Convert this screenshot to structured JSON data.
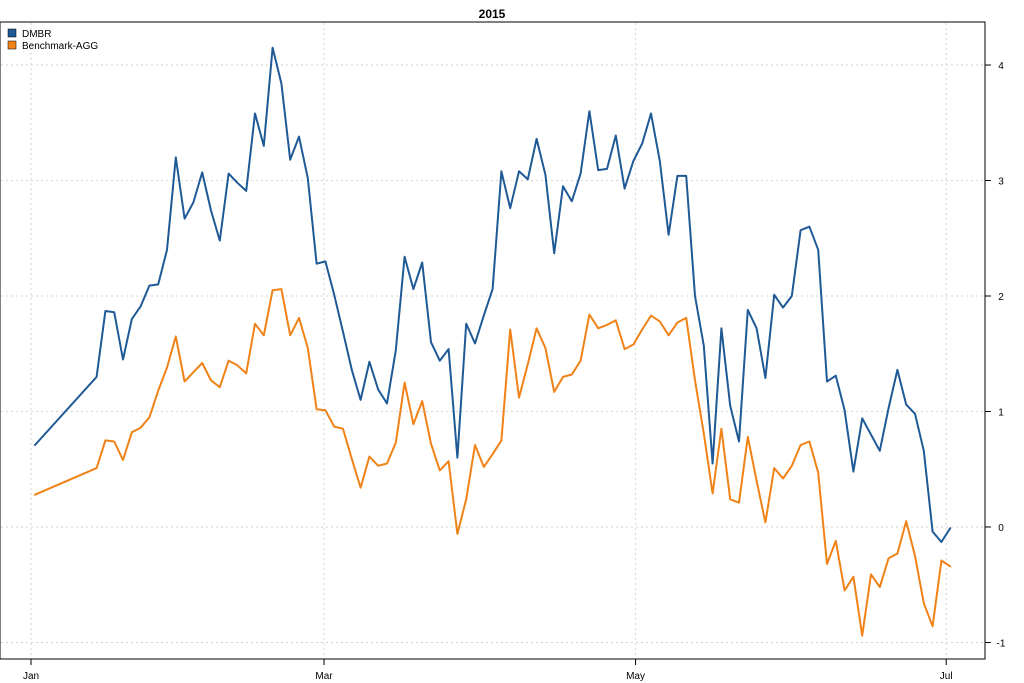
{
  "chart_data": {
    "type": "line",
    "title": "2015",
    "xlabel": "",
    "ylabel": "",
    "x_tick_labels": [
      "Jan",
      "Mar",
      "May",
      "Jul"
    ],
    "y_ticks": [
      -1,
      0,
      1,
      2,
      3,
      4
    ],
    "y_tick_labels": [
      "-1",
      "0",
      "1",
      "2",
      "3",
      "4"
    ],
    "y_axis_side": "right",
    "ylim": [
      -1.25,
      4.35
    ],
    "grid": true,
    "legend_position": "top-left",
    "series": [
      {
        "name": "DMBR",
        "color": "#1f5a96",
        "values": [
          [
            1,
            0.71
          ],
          [
            8,
            1.3
          ],
          [
            9,
            1.87
          ],
          [
            10,
            1.86
          ],
          [
            11,
            1.45
          ],
          [
            12,
            1.8
          ],
          [
            13,
            1.91
          ],
          [
            14,
            2.09
          ],
          [
            15,
            2.1
          ],
          [
            16,
            2.4
          ],
          [
            17,
            3.2
          ],
          [
            18,
            2.67
          ],
          [
            19,
            2.81
          ],
          [
            20,
            3.07
          ],
          [
            21,
            2.74
          ],
          [
            22,
            2.48
          ],
          [
            23,
            3.06
          ],
          [
            24,
            2.98
          ],
          [
            25,
            2.91
          ],
          [
            26,
            3.58
          ],
          [
            27,
            3.3
          ],
          [
            28,
            4.15
          ],
          [
            29,
            3.84
          ],
          [
            30,
            3.18
          ],
          [
            31,
            3.38
          ],
          [
            32,
            3.02
          ],
          [
            33,
            2.28
          ],
          [
            34,
            2.3
          ],
          [
            35,
            2.01
          ],
          [
            36,
            1.69
          ],
          [
            37,
            1.36
          ],
          [
            38,
            1.1
          ],
          [
            39,
            1.43
          ],
          [
            40,
            1.19
          ],
          [
            41,
            1.07
          ],
          [
            42,
            1.53
          ],
          [
            43,
            2.34
          ],
          [
            44,
            2.06
          ],
          [
            45,
            2.29
          ],
          [
            46,
            1.6
          ],
          [
            47,
            1.44
          ],
          [
            48,
            1.54
          ],
          [
            49,
            0.6
          ],
          [
            50,
            1.76
          ],
          [
            51,
            1.59
          ],
          [
            52,
            1.83
          ],
          [
            53,
            2.06
          ],
          [
            54,
            3.08
          ],
          [
            55,
            2.76
          ],
          [
            56,
            3.08
          ],
          [
            57,
            3.01
          ],
          [
            58,
            3.36
          ],
          [
            59,
            3.05
          ],
          [
            60,
            2.37
          ],
          [
            61,
            2.95
          ],
          [
            62,
            2.82
          ],
          [
            63,
            3.06
          ],
          [
            64,
            3.6
          ],
          [
            65,
            3.09
          ],
          [
            66,
            3.1
          ],
          [
            67,
            3.39
          ],
          [
            68,
            2.93
          ],
          [
            69,
            3.17
          ],
          [
            70,
            3.32
          ],
          [
            71,
            3.58
          ],
          [
            72,
            3.17
          ],
          [
            73,
            2.53
          ],
          [
            74,
            3.04
          ],
          [
            75,
            3.04
          ],
          [
            76,
            2.0
          ],
          [
            77,
            1.57
          ],
          [
            78,
            0.55
          ],
          [
            79,
            1.72
          ],
          [
            80,
            1.05
          ],
          [
            81,
            0.74
          ],
          [
            82,
            1.88
          ],
          [
            83,
            1.72
          ],
          [
            84,
            1.29
          ],
          [
            85,
            2.01
          ],
          [
            86,
            1.9
          ],
          [
            87,
            2.0
          ],
          [
            88,
            2.57
          ],
          [
            89,
            2.6
          ],
          [
            90,
            2.4
          ],
          [
            91,
            1.26
          ],
          [
            92,
            1.31
          ],
          [
            93,
            1.01
          ],
          [
            94,
            0.48
          ],
          [
            95,
            0.94
          ],
          [
            96,
            0.8
          ],
          [
            97,
            0.66
          ],
          [
            98,
            1.03
          ],
          [
            99,
            1.36
          ],
          [
            100,
            1.06
          ],
          [
            101,
            0.98
          ],
          [
            102,
            0.66
          ],
          [
            103,
            -0.04
          ],
          [
            104,
            -0.13
          ],
          [
            105,
            -0.01
          ]
        ]
      },
      {
        "name": "Benchmark-AGG",
        "color": "#f08218",
        "values": [
          [
            1,
            0.28
          ],
          [
            8,
            0.51
          ],
          [
            9,
            0.75
          ],
          [
            10,
            0.74
          ],
          [
            11,
            0.58
          ],
          [
            12,
            0.82
          ],
          [
            13,
            0.86
          ],
          [
            14,
            0.95
          ],
          [
            15,
            1.18
          ],
          [
            16,
            1.38
          ],
          [
            17,
            1.65
          ],
          [
            18,
            1.26
          ],
          [
            19,
            1.34
          ],
          [
            20,
            1.42
          ],
          [
            21,
            1.27
          ],
          [
            22,
            1.21
          ],
          [
            23,
            1.44
          ],
          [
            24,
            1.4
          ],
          [
            25,
            1.33
          ],
          [
            26,
            1.76
          ],
          [
            27,
            1.66
          ],
          [
            28,
            2.05
          ],
          [
            29,
            2.06
          ],
          [
            30,
            1.66
          ],
          [
            31,
            1.81
          ],
          [
            32,
            1.55
          ],
          [
            33,
            1.02
          ],
          [
            34,
            1.01
          ],
          [
            35,
            0.87
          ],
          [
            36,
            0.85
          ],
          [
            37,
            0.59
          ],
          [
            38,
            0.34
          ],
          [
            39,
            0.61
          ],
          [
            40,
            0.53
          ],
          [
            41,
            0.55
          ],
          [
            42,
            0.73
          ],
          [
            43,
            1.25
          ],
          [
            44,
            0.89
          ],
          [
            45,
            1.09
          ],
          [
            46,
            0.72
          ],
          [
            47,
            0.49
          ],
          [
            48,
            0.57
          ],
          [
            49,
            -0.06
          ],
          [
            50,
            0.24
          ],
          [
            51,
            0.71
          ],
          [
            52,
            0.52
          ],
          [
            53,
            0.63
          ],
          [
            54,
            0.75
          ],
          [
            55,
            1.71
          ],
          [
            56,
            1.12
          ],
          [
            57,
            1.41
          ],
          [
            58,
            1.72
          ],
          [
            59,
            1.55
          ],
          [
            60,
            1.17
          ],
          [
            61,
            1.3
          ],
          [
            62,
            1.32
          ],
          [
            63,
            1.44
          ],
          [
            64,
            1.84
          ],
          [
            65,
            1.72
          ],
          [
            66,
            1.75
          ],
          [
            67,
            1.79
          ],
          [
            68,
            1.54
          ],
          [
            69,
            1.58
          ],
          [
            70,
            1.71
          ],
          [
            71,
            1.83
          ],
          [
            72,
            1.78
          ],
          [
            73,
            1.66
          ],
          [
            74,
            1.77
          ],
          [
            75,
            1.81
          ],
          [
            76,
            1.27
          ],
          [
            77,
            0.81
          ],
          [
            78,
            0.29
          ],
          [
            79,
            0.85
          ],
          [
            80,
            0.24
          ],
          [
            81,
            0.21
          ],
          [
            82,
            0.78
          ],
          [
            83,
            0.4
          ],
          [
            84,
            0.04
          ],
          [
            85,
            0.51
          ],
          [
            86,
            0.42
          ],
          [
            87,
            0.53
          ],
          [
            88,
            0.71
          ],
          [
            89,
            0.74
          ],
          [
            90,
            0.47
          ],
          [
            91,
            -0.32
          ],
          [
            92,
            -0.12
          ],
          [
            93,
            -0.55
          ],
          [
            94,
            -0.43
          ],
          [
            95,
            -0.94
          ],
          [
            96,
            -0.41
          ],
          [
            97,
            -0.52
          ],
          [
            98,
            -0.27
          ],
          [
            99,
            -0.23
          ],
          [
            100,
            0.05
          ],
          [
            101,
            -0.25
          ],
          [
            102,
            -0.66
          ],
          [
            103,
            -0.86
          ],
          [
            104,
            -0.29
          ],
          [
            105,
            -0.34
          ]
        ]
      }
    ]
  }
}
